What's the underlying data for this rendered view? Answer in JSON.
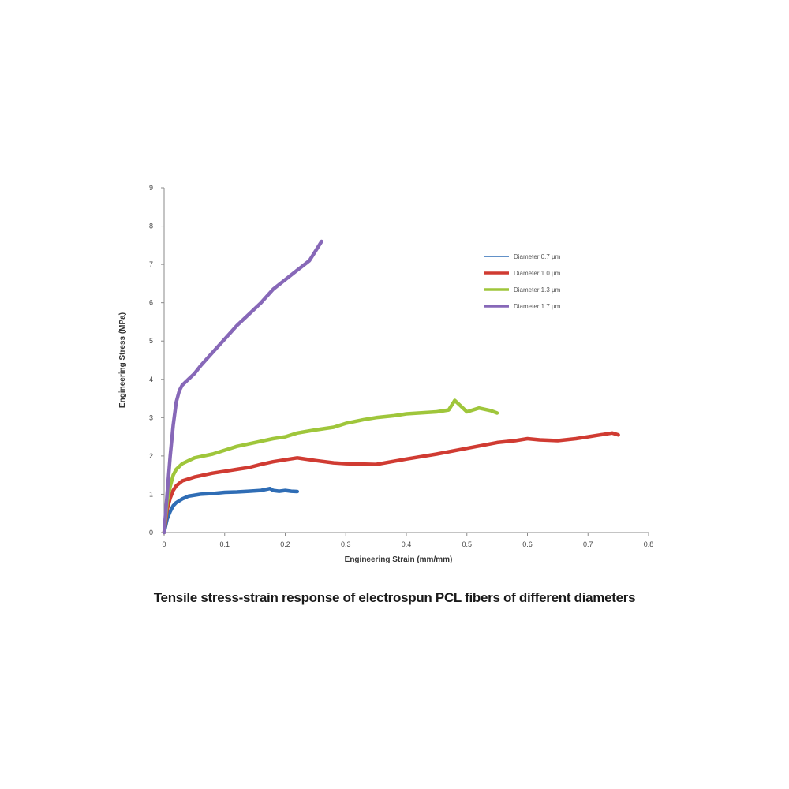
{
  "caption": "Tensile stress-strain response of electrospun PCL fibers of different diameters",
  "chart_data": {
    "type": "line",
    "xlabel": "Engineering Strain (mm/mm)",
    "ylabel": "Engineering Stress (MPa)",
    "xlim": [
      0,
      0.8
    ],
    "ylim": [
      0,
      9
    ],
    "x_ticks": [
      "0",
      "0.1",
      "0.2",
      "0.3",
      "0.4",
      "0.5",
      "0.6",
      "0.7",
      "0.8"
    ],
    "y_ticks": [
      "0",
      "1",
      "2",
      "3",
      "4",
      "5",
      "6",
      "7",
      "8",
      "9"
    ],
    "grid": false,
    "legend_position": "top-right",
    "series": [
      {
        "name": "Diameter 0.7 μm",
        "color": "#2f6db5",
        "x": [
          0,
          0.005,
          0.01,
          0.015,
          0.02,
          0.03,
          0.04,
          0.06,
          0.08,
          0.1,
          0.12,
          0.14,
          0.16,
          0.175,
          0.18,
          0.19,
          0.2,
          0.21,
          0.22
        ],
        "y": [
          0,
          0.35,
          0.55,
          0.7,
          0.78,
          0.88,
          0.95,
          1.0,
          1.02,
          1.05,
          1.06,
          1.08,
          1.1,
          1.15,
          1.1,
          1.08,
          1.1,
          1.08,
          1.07
        ]
      },
      {
        "name": "Diameter 1.0 μm",
        "color": "#d03b32",
        "x": [
          0,
          0.005,
          0.01,
          0.015,
          0.02,
          0.03,
          0.05,
          0.08,
          0.1,
          0.12,
          0.14,
          0.16,
          0.18,
          0.2,
          0.22,
          0.25,
          0.28,
          0.3,
          0.35,
          0.4,
          0.45,
          0.5,
          0.55,
          0.58,
          0.6,
          0.62,
          0.65,
          0.68,
          0.7,
          0.72,
          0.74,
          0.75
        ],
        "y": [
          0,
          0.6,
          0.9,
          1.1,
          1.22,
          1.35,
          1.45,
          1.55,
          1.6,
          1.65,
          1.7,
          1.78,
          1.85,
          1.9,
          1.95,
          1.88,
          1.82,
          1.8,
          1.78,
          1.92,
          2.05,
          2.2,
          2.35,
          2.4,
          2.45,
          2.42,
          2.4,
          2.45,
          2.5,
          2.55,
          2.6,
          2.55
        ]
      },
      {
        "name": "Diameter 1.3 μm",
        "color": "#9fc63b",
        "x": [
          0,
          0.005,
          0.01,
          0.015,
          0.02,
          0.03,
          0.05,
          0.08,
          0.1,
          0.12,
          0.15,
          0.18,
          0.2,
          0.22,
          0.25,
          0.28,
          0.3,
          0.33,
          0.35,
          0.38,
          0.4,
          0.42,
          0.45,
          0.47,
          0.48,
          0.5,
          0.52,
          0.54,
          0.55
        ],
        "y": [
          0,
          0.8,
          1.2,
          1.5,
          1.65,
          1.8,
          1.95,
          2.05,
          2.15,
          2.25,
          2.35,
          2.45,
          2.5,
          2.6,
          2.68,
          2.75,
          2.85,
          2.95,
          3.0,
          3.05,
          3.1,
          3.12,
          3.15,
          3.2,
          3.45,
          3.15,
          3.25,
          3.18,
          3.12
        ]
      },
      {
        "name": "Diameter 1.7 μm",
        "color": "#8768b8",
        "x": [
          0,
          0.005,
          0.01,
          0.015,
          0.02,
          0.025,
          0.03,
          0.04,
          0.05,
          0.06,
          0.08,
          0.1,
          0.12,
          0.14,
          0.16,
          0.18,
          0.2,
          0.22,
          0.24,
          0.26
        ],
        "y": [
          0,
          1.0,
          2.0,
          2.8,
          3.4,
          3.7,
          3.85,
          4.0,
          4.15,
          4.35,
          4.7,
          5.05,
          5.4,
          5.7,
          6.0,
          6.35,
          6.6,
          6.85,
          7.1,
          7.6
        ]
      }
    ]
  }
}
